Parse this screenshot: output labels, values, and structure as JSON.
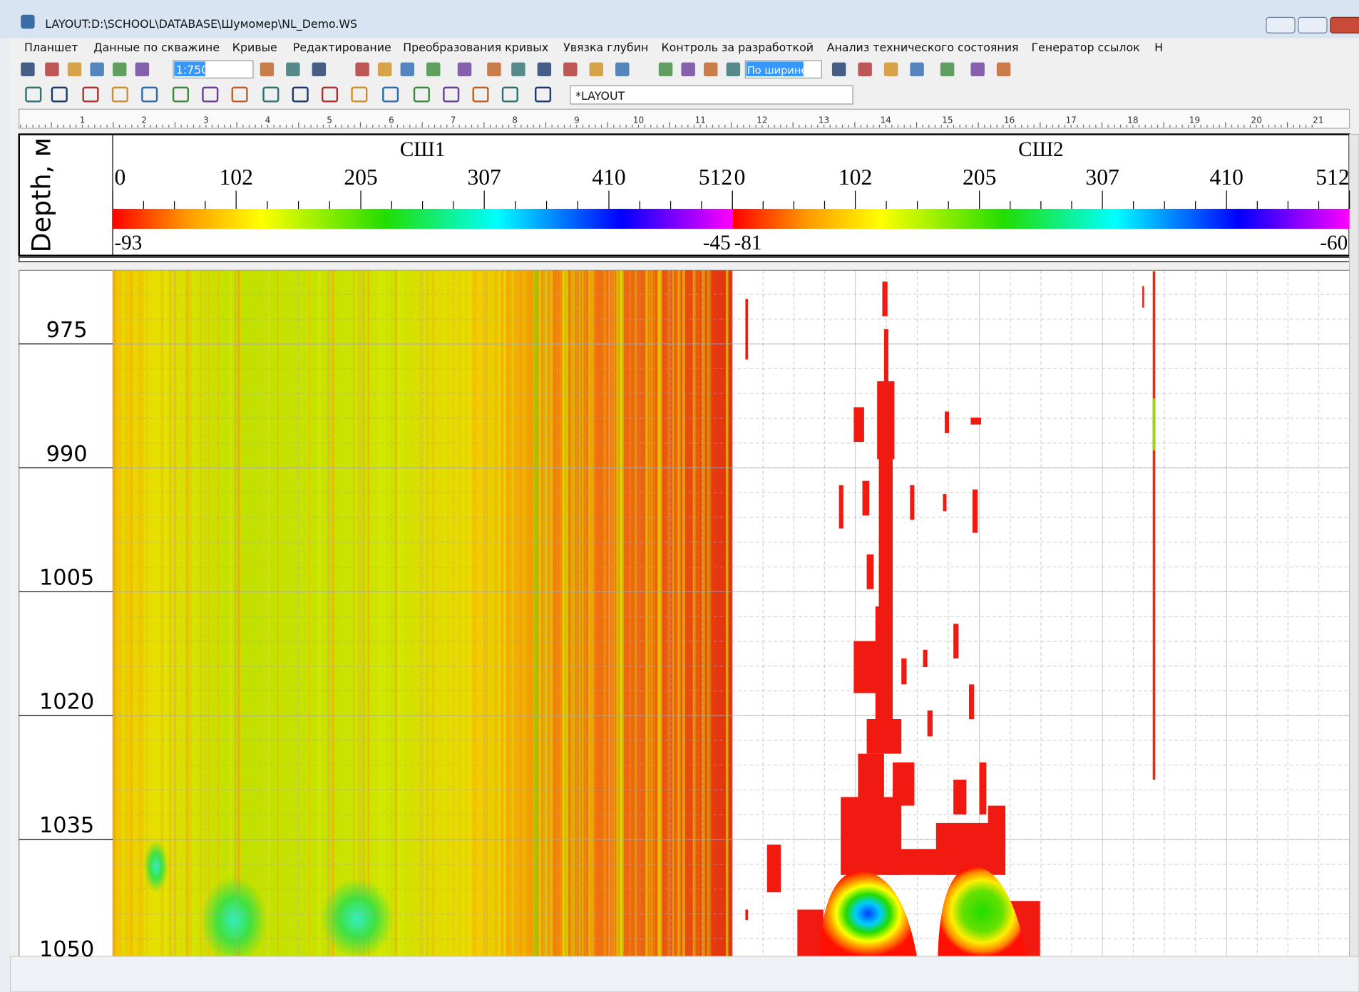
{
  "window": {
    "title": "LAYOUT:D:\\SCHOOL\\DATABASE\\Шумомер\\NL_Demo.WS"
  },
  "menu": [
    "Планшет",
    "Данные по скважине",
    "Кривые",
    "Редактирование",
    "Преобразования кривых",
    "Увязка глубин",
    "Контроль за разработкой",
    "Анализ технического состояния",
    "Генератор ссылок",
    "Н"
  ],
  "toolbar": {
    "scale": "1:750",
    "zoom": "По ширине",
    "layout": "*LAYOUT"
  },
  "ruler": [
    1,
    2,
    3,
    4,
    5,
    6,
    7,
    8,
    9,
    10,
    11,
    12,
    13,
    14,
    15,
    16,
    17,
    18,
    19,
    20,
    21
  ],
  "header": {
    "depth_label": "Depth, м",
    "tracks": [
      {
        "name": "СШ1",
        "ticks": [
          0,
          102,
          205,
          307,
          410,
          512
        ],
        "min": -93,
        "max": -45
      },
      {
        "name": "СШ2",
        "ticks": [
          0,
          102,
          205,
          307,
          410,
          512
        ],
        "min": -81,
        "max": -60
      }
    ]
  },
  "depth_ticks": [
    975,
    990,
    1005,
    1020,
    1035,
    1050
  ]
}
